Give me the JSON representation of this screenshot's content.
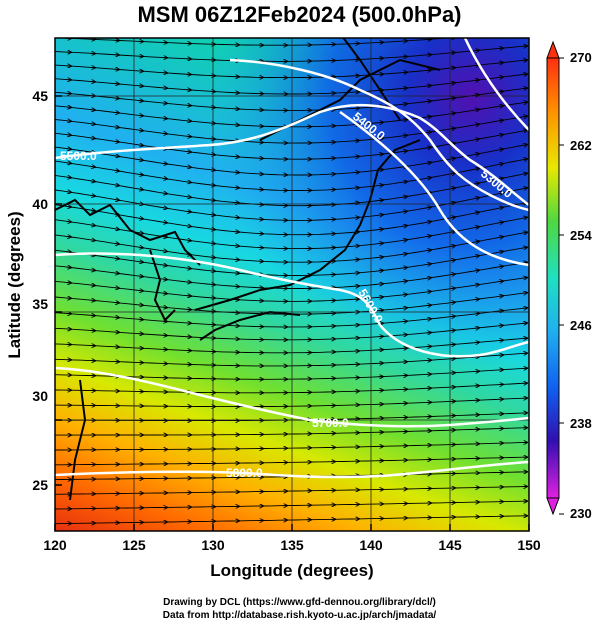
{
  "title": "MSM 06Z12Feb2024 (500.0hPa)",
  "map": {
    "xlabel": "Longitude (degrees)",
    "ylabel": "Latitude  (degrees)",
    "lon_range": [
      120,
      150
    ],
    "lat_range": [
      22.4,
      48
    ],
    "lon_ticks": [
      "120",
      "125",
      "130",
      "135",
      "140",
      "145",
      "150"
    ],
    "lat_ticks": [
      "25",
      "30",
      "35",
      "40",
      "45"
    ],
    "field": "temperature (shaded), height contours (white), wind streamlines (black)"
  },
  "colorbar": {
    "ticks": [
      "270",
      "262",
      "254",
      "246",
      "238",
      "230"
    ],
    "min": 230,
    "max": 270,
    "colors": [
      "#ff3010",
      "#ff9000",
      "#e8e800",
      "#40d040",
      "#10e0e0",
      "#1060f0",
      "#2020c0",
      "#8010c0",
      "#e020e0"
    ]
  },
  "contours": [
    "5500.0",
    "5400.0",
    "5300.0",
    "5600.0",
    "5700.0",
    "5800.0"
  ],
  "credits": {
    "line1": "Drawing by DCL (https://www.gfd-dennou.org/library/dcl/)",
    "line2": "Data from http://database.rish.kyoto-u.ac.jp/arch/jmadata/"
  }
}
